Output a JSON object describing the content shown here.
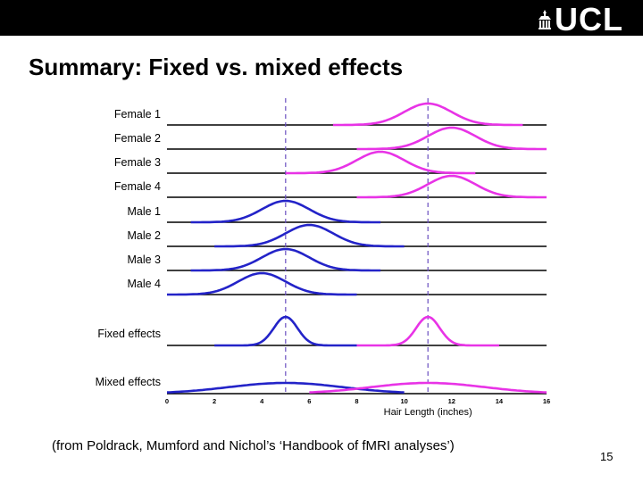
{
  "slide": {
    "logo": "UCL",
    "title": "Summary: Fixed vs. mixed effects",
    "caption": "(from Poldrack, Mumford and Nichol’s ‘Handbook of fMRI analyses’)",
    "page_number": "15"
  },
  "colors": {
    "female": "#e833e6",
    "male": "#2323c8",
    "dashed": "#6a4fc0",
    "axis": "#000000"
  },
  "chart_data": {
    "type": "line",
    "xlabel": "Hair Length (inches)",
    "xlim": [
      0,
      16
    ],
    "xticks": [
      0,
      2,
      4,
      6,
      8,
      10,
      12,
      14,
      16
    ],
    "reference_lines": [
      5,
      11
    ],
    "rows": [
      {
        "label": "Female 1",
        "curves": [
          {
            "group": "female",
            "mean": 11,
            "sd": 1,
            "from": 7,
            "to": 15
          }
        ]
      },
      {
        "label": "Female 2",
        "curves": [
          {
            "group": "female",
            "mean": 12,
            "sd": 1,
            "from": 8,
            "to": 16
          }
        ]
      },
      {
        "label": "Female 3",
        "curves": [
          {
            "group": "female",
            "mean": 9,
            "sd": 1,
            "from": 5,
            "to": 13
          }
        ]
      },
      {
        "label": "Female 4",
        "curves": [
          {
            "group": "female",
            "mean": 12,
            "sd": 1,
            "from": 8,
            "to": 16
          }
        ]
      },
      {
        "label": "Male 1",
        "curves": [
          {
            "group": "male",
            "mean": 5,
            "sd": 1,
            "from": 1,
            "to": 9
          }
        ]
      },
      {
        "label": "Male 2",
        "curves": [
          {
            "group": "male",
            "mean": 6,
            "sd": 1,
            "from": 2,
            "to": 10
          }
        ]
      },
      {
        "label": "Male 3",
        "curves": [
          {
            "group": "male",
            "mean": 5,
            "sd": 1,
            "from": 1,
            "to": 9
          }
        ]
      },
      {
        "label": "Male 4",
        "curves": [
          {
            "group": "male",
            "mean": 4,
            "sd": 1,
            "from": 0,
            "to": 8
          }
        ]
      },
      {
        "label": "Fixed effects",
        "curves": [
          {
            "group": "male",
            "mean": 5,
            "sd": 0.5,
            "from": 2,
            "to": 8
          },
          {
            "group": "female",
            "mean": 11,
            "sd": 0.5,
            "from": 8,
            "to": 14
          }
        ]
      },
      {
        "label": "Mixed effects",
        "curves": [
          {
            "group": "male",
            "mean": 5,
            "sd": 2.4,
            "from": 0,
            "to": 10
          },
          {
            "group": "female",
            "mean": 11,
            "sd": 2.4,
            "from": 6,
            "to": 16
          }
        ]
      }
    ]
  }
}
